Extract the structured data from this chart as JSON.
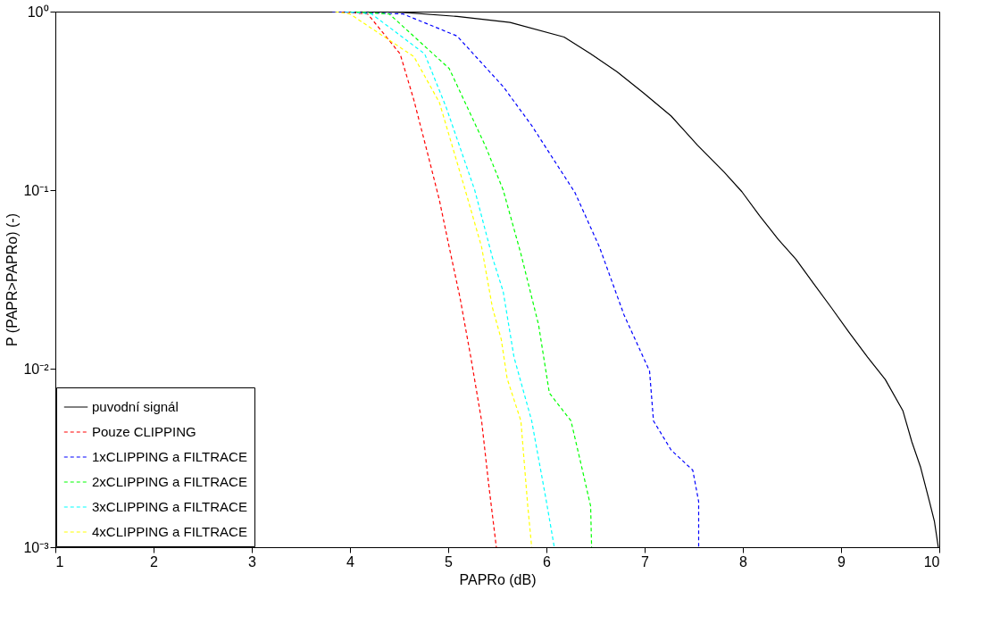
{
  "chart_data": {
    "type": "line",
    "xlabel": "PAPRo (dB)",
    "ylabel": "P (PAPR>PAPRo) (-)",
    "log": true,
    "grid": false,
    "legend": "bottom left",
    "xlim": [
      1,
      10
    ],
    "xticks": [
      1,
      2,
      3,
      4,
      5,
      6,
      7,
      8,
      9,
      10
    ],
    "ylim": [
      0.001,
      1
    ],
    "yticks": [
      {
        "value": 0.001,
        "label": "10⁻³"
      },
      {
        "value": 0.01,
        "label": "10⁻²"
      },
      {
        "value": 0.1,
        "label": "10⁻¹"
      },
      {
        "value": 1,
        "label": "10⁰"
      }
    ],
    "series": [
      {
        "name": "puvodní signál",
        "color": "#000000",
        "line_style": "solid",
        "x": [
          4.3,
          4.54,
          5.09,
          5.63,
          6.18,
          6.45,
          6.72,
          6.99,
          7.27,
          7.54,
          7.81,
          7.99,
          8.17,
          8.36,
          8.54,
          8.72,
          8.9,
          9.08,
          9.27,
          9.45,
          9.63,
          9.72,
          9.81,
          9.9,
          9.95,
          9.99
        ],
        "values": [
          1,
          0.99,
          0.94,
          0.87,
          0.72,
          0.58,
          0.46,
          0.35,
          0.26,
          0.178,
          0.126,
          0.098,
          0.072,
          0.053,
          0.041,
          0.03,
          0.022,
          0.016,
          0.0116,
          0.0087,
          0.0058,
          0.0039,
          0.0028,
          0.0018,
          0.0014,
          0.001
        ]
      },
      {
        "name": "Pouze CLIPPING",
        "color": "#ff0000",
        "line_style": "dashed",
        "x": [
          3.9,
          4.18,
          4.51,
          4.65,
          4.8,
          4.91,
          5.01,
          5.12,
          5.23,
          5.34,
          5.41,
          5.49
        ],
        "values": [
          1,
          0.97,
          0.58,
          0.32,
          0.153,
          0.088,
          0.048,
          0.025,
          0.0116,
          0.0051,
          0.0023,
          0.001
        ]
      },
      {
        "name": "1xCLIPPING a FILTRACE",
        "color": "#0000ff",
        "line_style": "dashed",
        "x": [
          3.82,
          4.54,
          5.09,
          5.56,
          5.85,
          6.29,
          6.54,
          6.79,
          7.05,
          7.09,
          7.27,
          7.49,
          7.55,
          7.55
        ],
        "values": [
          1,
          0.97,
          0.73,
          0.38,
          0.23,
          0.097,
          0.048,
          0.02,
          0.0097,
          0.0051,
          0.0035,
          0.0027,
          0.0018,
          0.001
        ]
      },
      {
        "name": "2xCLIPPING a FILTRACE",
        "color": "#00ff00",
        "line_style": "dashed",
        "x": [
          4.0,
          4.4,
          5.01,
          5.38,
          5.56,
          5.74,
          5.92,
          6.03,
          6.25,
          6.36,
          6.45,
          6.46
        ],
        "values": [
          1,
          0.97,
          0.48,
          0.176,
          0.1,
          0.044,
          0.0176,
          0.0073,
          0.0051,
          0.0028,
          0.0017,
          0.001
        ]
      },
      {
        "name": "3xCLIPPING a FILTRACE",
        "color": "#00ffff",
        "line_style": "dashed",
        "x": [
          3.95,
          4.22,
          4.76,
          4.98,
          5.27,
          5.45,
          5.56,
          5.67,
          5.85,
          6.0,
          6.08
        ],
        "values": [
          1,
          0.97,
          0.58,
          0.29,
          0.1,
          0.042,
          0.027,
          0.0116,
          0.0051,
          0.0018,
          0.001
        ]
      },
      {
        "name": "4xCLIPPING a FILTRACE",
        "color": "#ffff00",
        "line_style": "dashed",
        "x": [
          3.85,
          4.0,
          4.65,
          4.91,
          5.16,
          5.34,
          5.45,
          5.54,
          5.6,
          5.74,
          5.81,
          5.85
        ],
        "values": [
          1,
          0.97,
          0.56,
          0.31,
          0.106,
          0.048,
          0.022,
          0.0146,
          0.0088,
          0.0051,
          0.0017,
          0.001
        ]
      }
    ]
  }
}
